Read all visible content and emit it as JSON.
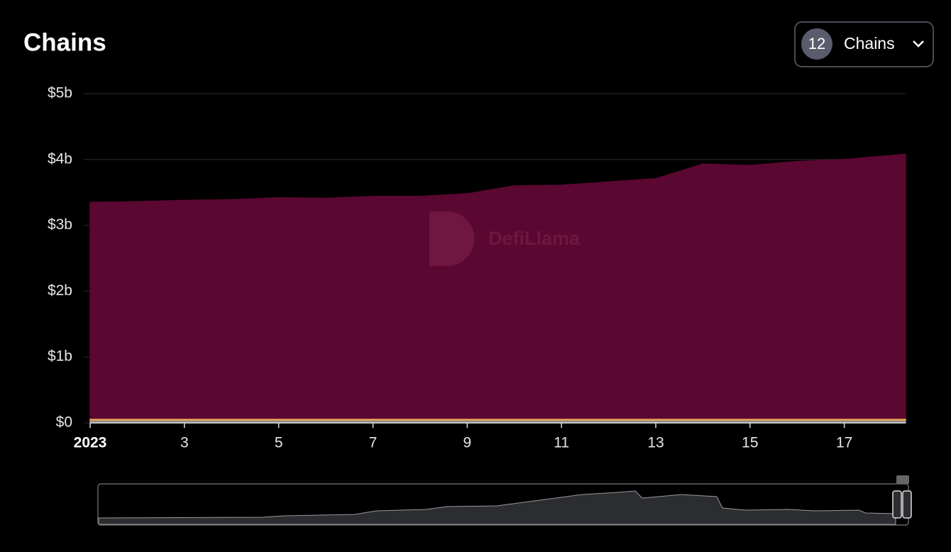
{
  "header": {
    "title": "Chains"
  },
  "selector": {
    "count": "12",
    "label": "Chains"
  },
  "watermark": "DefiLlama",
  "chart_data": {
    "type": "area",
    "stacked": true,
    "x": [
      1,
      2,
      3,
      4,
      5,
      6,
      7,
      8,
      9,
      10,
      11,
      12,
      13,
      14,
      15,
      16,
      17,
      18.3
    ],
    "series": [
      {
        "color": "#8c8c8c",
        "values": [
          0.04,
          0.04,
          0.04,
          0.04,
          0.04,
          0.04,
          0.04,
          0.04,
          0.04,
          0.04,
          0.04,
          0.04,
          0.04,
          0.04,
          0.04,
          0.04,
          0.04,
          0.04
        ]
      },
      {
        "color": "#e3a653",
        "values": [
          0.03,
          0.03,
          0.03,
          0.03,
          0.03,
          0.03,
          0.03,
          0.03,
          0.03,
          0.03,
          0.03,
          0.03,
          0.03,
          0.03,
          0.03,
          0.03,
          0.03,
          0.03
        ]
      },
      {
        "color": "#5a0731",
        "values": [
          3.28,
          3.29,
          3.31,
          3.32,
          3.35,
          3.34,
          3.37,
          3.37,
          3.41,
          3.53,
          3.54,
          3.59,
          3.64,
          3.86,
          3.84,
          3.9,
          3.93,
          4.01
        ]
      }
    ],
    "xlim": [
      1,
      18.3
    ],
    "xticks": [
      {
        "value": 1,
        "label": "2023"
      },
      3,
      5,
      7,
      9,
      11,
      13,
      15,
      17
    ],
    "ylim": [
      0,
      5
    ],
    "yticks": [
      {
        "value": 0,
        "label": "$0"
      },
      {
        "value": 1,
        "label": "$1b"
      },
      {
        "value": 2,
        "label": "$2b"
      },
      {
        "value": 3,
        "label": "$3b"
      },
      {
        "value": 4,
        "label": "$4b"
      },
      {
        "value": 5,
        "label": "$5b"
      }
    ],
    "grid": true
  }
}
